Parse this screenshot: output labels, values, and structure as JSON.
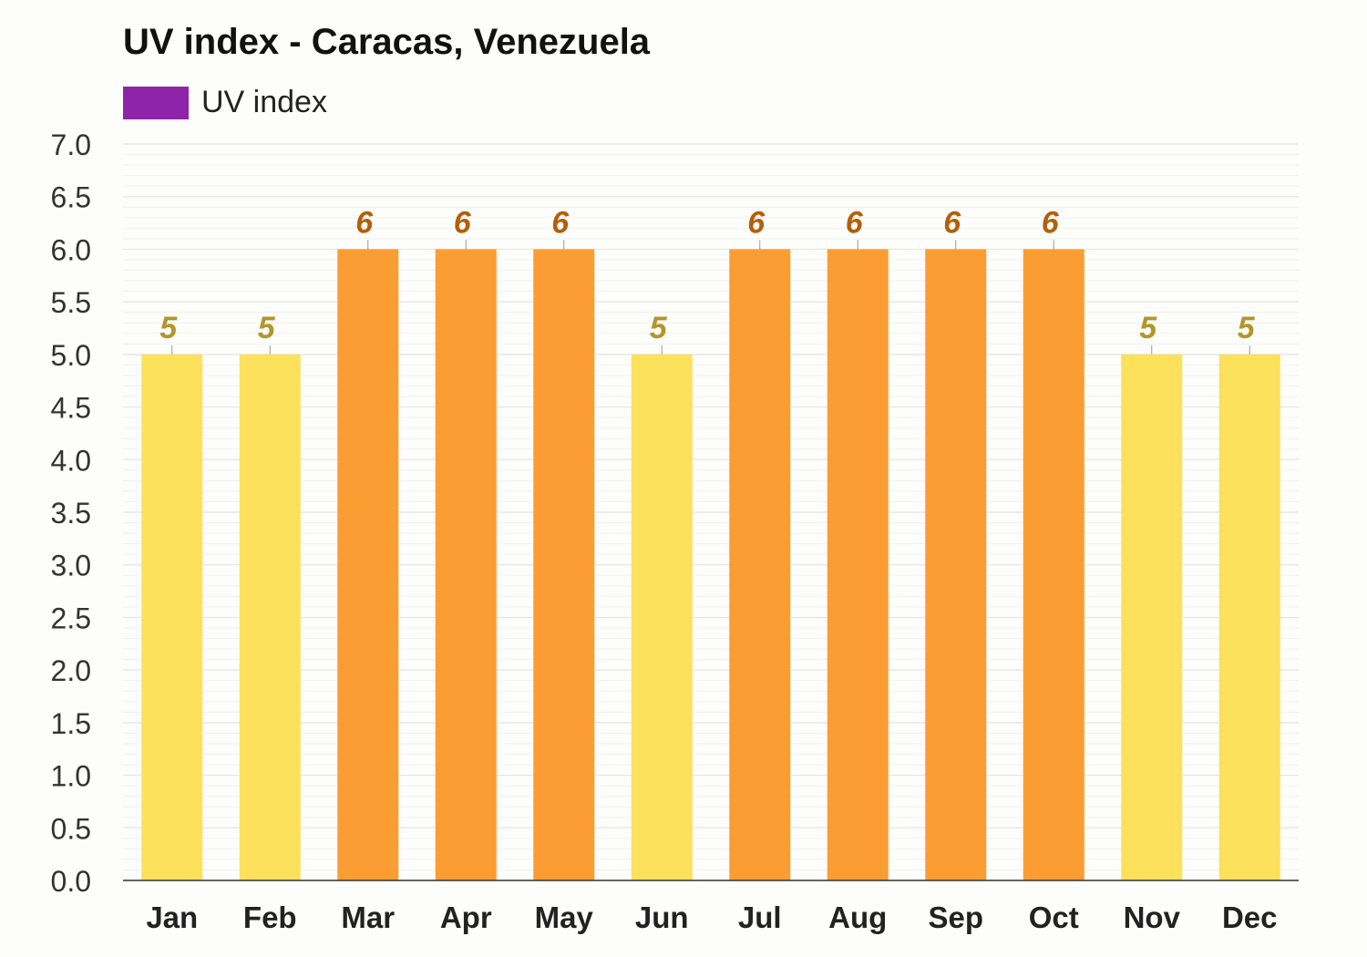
{
  "title": "UV index - Caracas, Venezuela",
  "colors": {
    "legend": "#8e24aa",
    "bar_low": "#fde05c",
    "bar_high": "#fb9d32",
    "label_low": "#b3952a",
    "label_high": "#b35f0a",
    "grid": "#e4e4e4",
    "axis": "#333333"
  },
  "chart_data": {
    "type": "bar",
    "categories": [
      "Jan",
      "Feb",
      "Mar",
      "Apr",
      "May",
      "Jun",
      "Jul",
      "Aug",
      "Sep",
      "Oct",
      "Nov",
      "Dec"
    ],
    "series": [
      {
        "name": "UV index",
        "values": [
          5,
          5,
          6,
          6,
          6,
          5,
          6,
          6,
          6,
          6,
          5,
          5
        ]
      }
    ],
    "data_labels": [
      "5",
      "5",
      "6",
      "6",
      "6",
      "5",
      "6",
      "6",
      "6",
      "6",
      "5",
      "5"
    ],
    "y_ticks": [
      "0.0",
      "0.5",
      "1.0",
      "1.5",
      "2.0",
      "2.5",
      "3.0",
      "3.5",
      "4.0",
      "4.5",
      "5.0",
      "5.5",
      "6.0",
      "6.5",
      "7.0"
    ],
    "ylim": [
      0,
      7
    ],
    "xlabel": "",
    "ylabel": "",
    "grid": true,
    "legend_position": "top-left"
  }
}
